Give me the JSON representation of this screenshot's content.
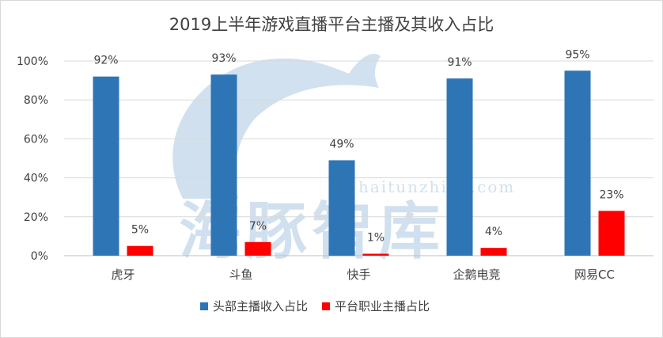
{
  "chart_data": {
    "type": "bar",
    "title": "2019上半年游戏直播平台主播及其收入占比",
    "categories": [
      "虎牙",
      "斗鱼",
      "快手",
      "企鹅电竞",
      "网易CC"
    ],
    "series": [
      {
        "name": "头部主播收入占比",
        "values": [
          92,
          93,
          49,
          91,
          95
        ],
        "labels": [
          "92%",
          "93%",
          "49%",
          "91%",
          "95%"
        ],
        "color": "#2e75b6"
      },
      {
        "name": "平台职业主播占比",
        "values": [
          5,
          7,
          1,
          4,
          23
        ],
        "labels": [
          "5%",
          "7%",
          "1%",
          "4%",
          "23%"
        ],
        "color": "#ff0000"
      }
    ],
    "y_ticks": [
      "0%",
      "20%",
      "40%",
      "60%",
      "80%",
      "100%"
    ],
    "ylim": [
      0,
      100
    ],
    "xlabel": "",
    "ylabel": "",
    "grid": true,
    "legend_position": "bottom"
  },
  "watermark": {
    "text": "haitunzhiku.com",
    "logo_text": "海豚智库"
  }
}
